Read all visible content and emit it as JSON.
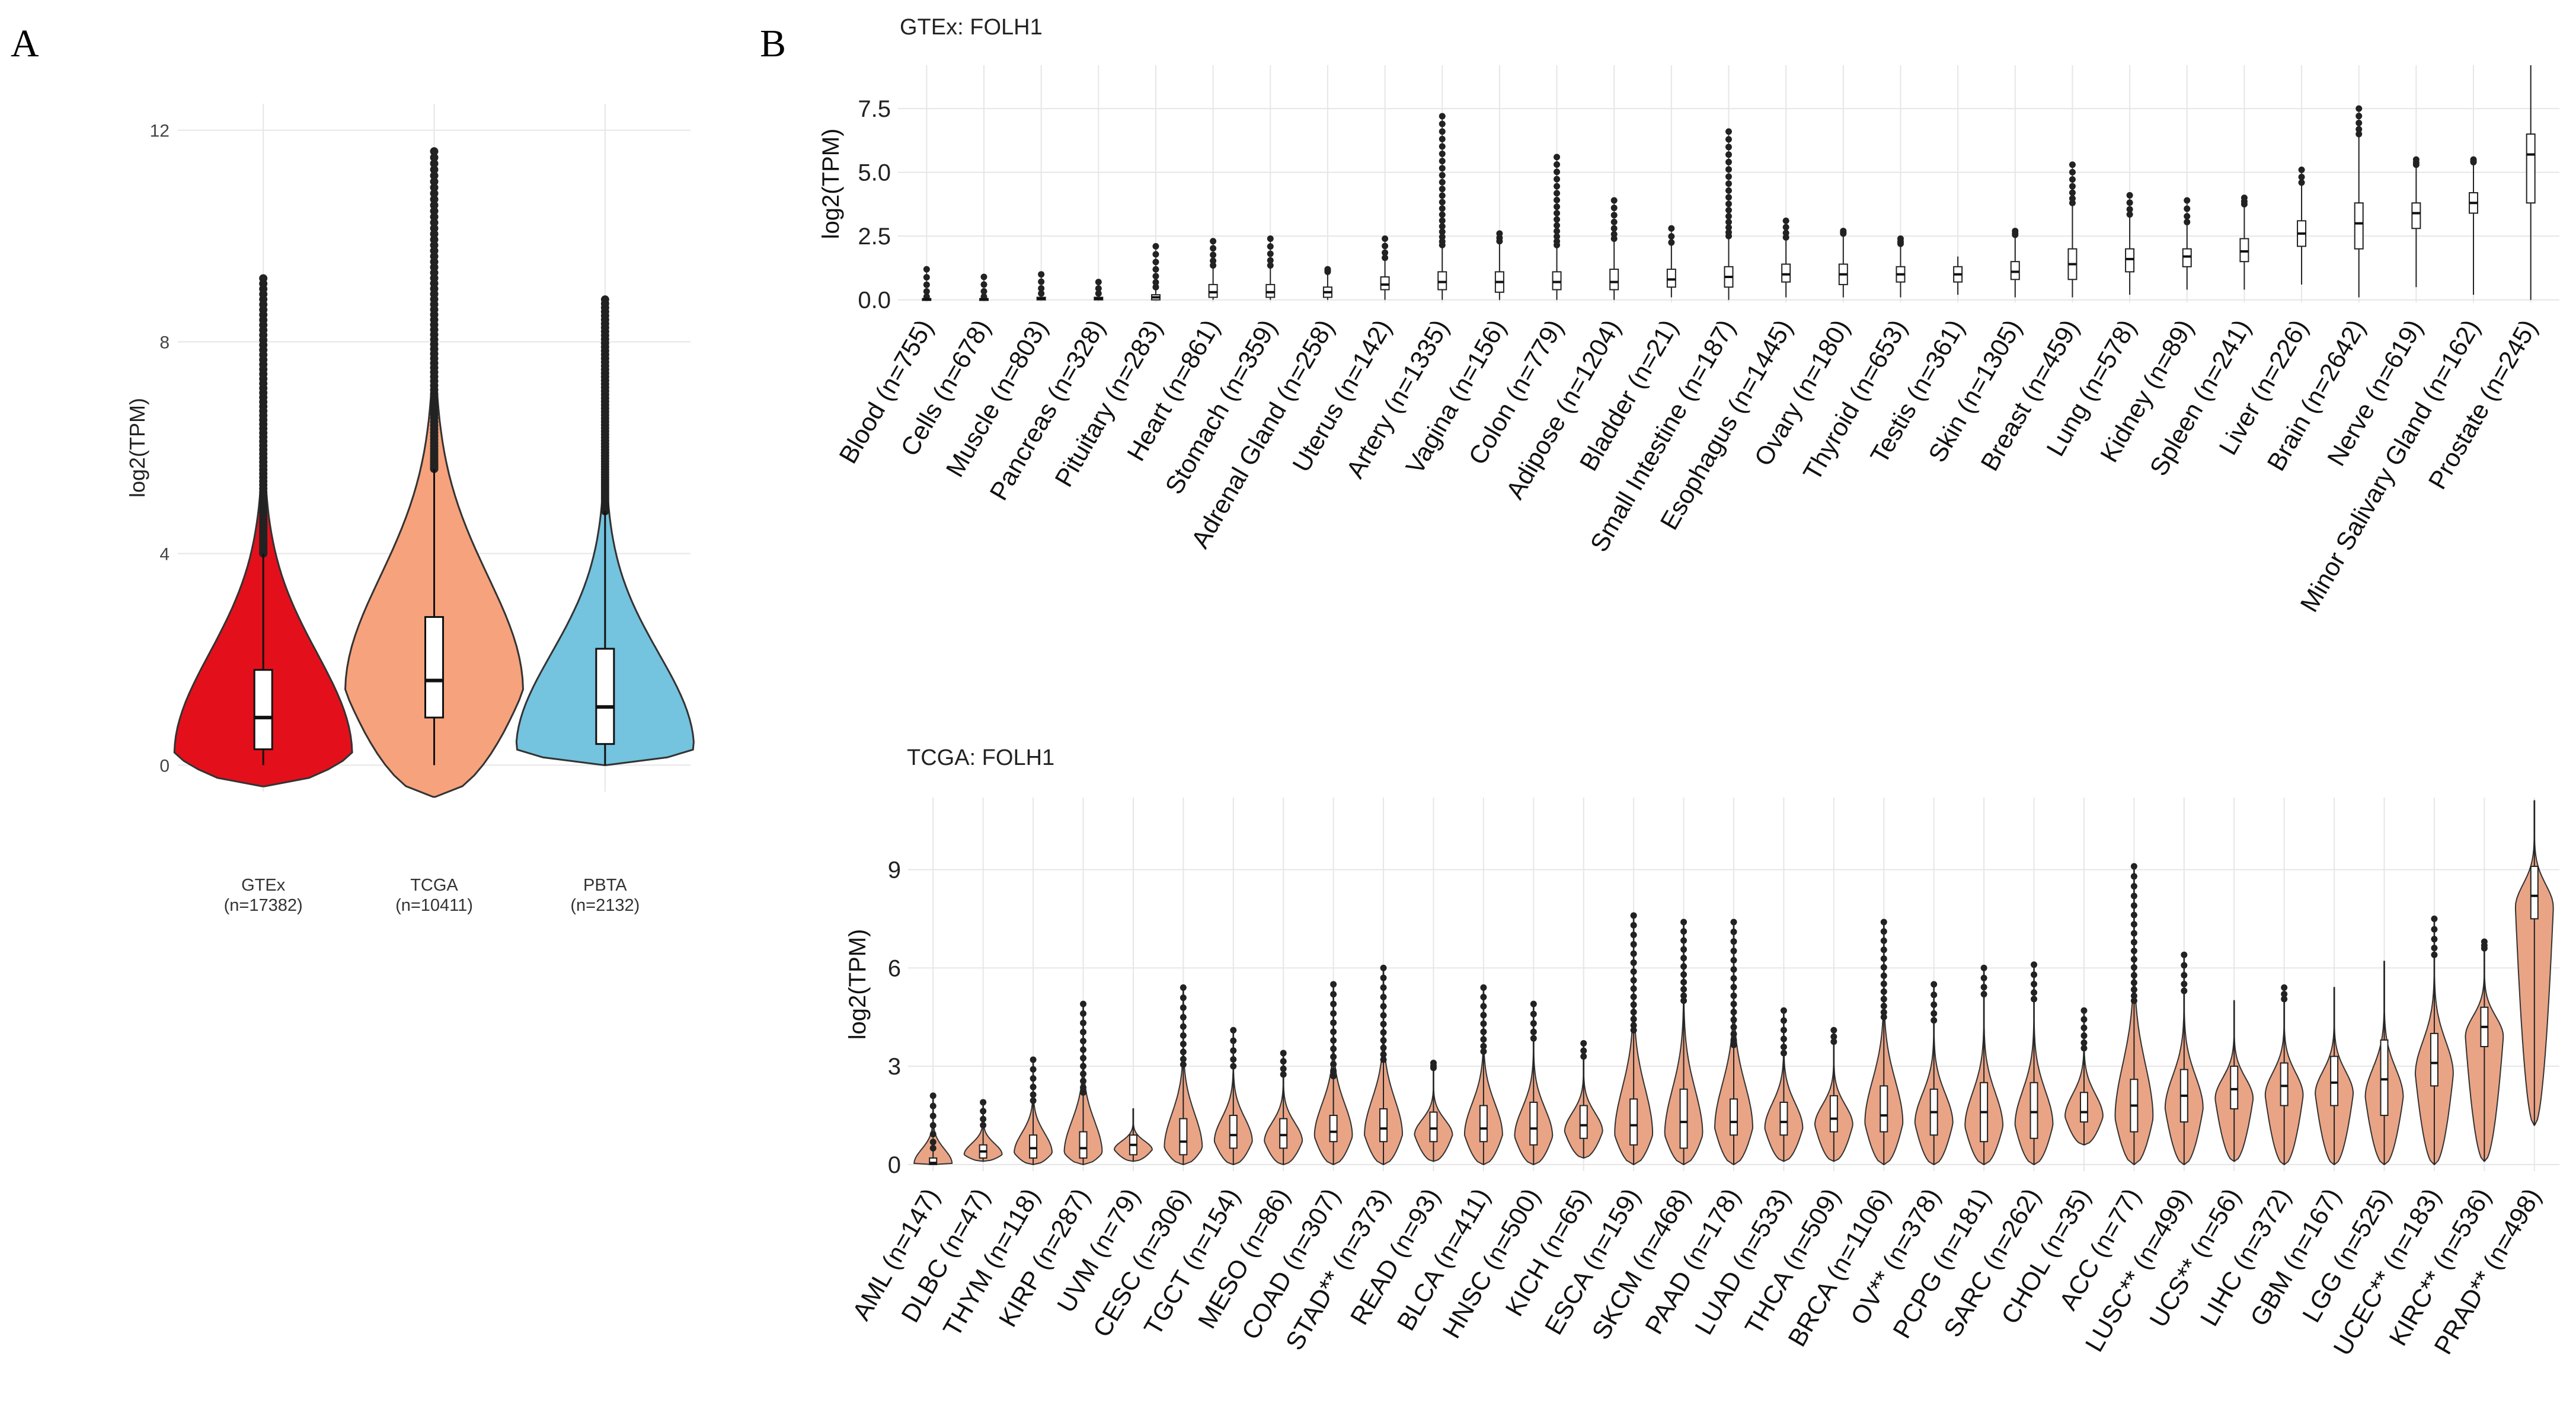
{
  "panels": {
    "A": {
      "letter": "A"
    },
    "B": {
      "letter": "B"
    }
  },
  "colors": {
    "GTEx": "#e3101c",
    "TCGA": "#f6a27c",
    "PBTA": "#74c3df",
    "grid": "#e6e6e6",
    "outlier": "#222222",
    "tcga_violin": "#e9a486"
  },
  "chart_data": [
    {
      "id": "panel-a",
      "type": "violin",
      "ylabel": "log2(TPM)",
      "ylim": [
        -0.5,
        12.5
      ],
      "yticks": [
        0,
        4,
        8,
        12
      ],
      "grid": true,
      "groups": [
        {
          "name": "GTEx",
          "n_label": "(n=17382)",
          "median": 0.9,
          "q1": 0.3,
          "q3": 1.8,
          "whisker_low": 0.0,
          "whisker_high": 4.0,
          "max": 9.2,
          "min": -0.4,
          "density_peak": 0.2
        },
        {
          "name": "TCGA",
          "n_label": "(n=10411)",
          "median": 1.6,
          "q1": 0.9,
          "q3": 2.8,
          "whisker_low": 0.0,
          "whisker_high": 5.6,
          "max": 11.6,
          "min": -0.6,
          "density_peak": 1.4
        },
        {
          "name": "PBTA",
          "n_label": "(n=2132)",
          "median": 1.1,
          "q1": 0.4,
          "q3": 2.2,
          "whisker_low": 0.0,
          "whisker_high": 4.8,
          "max": 8.8,
          "min": 0.0,
          "density_peak": 0.3
        }
      ]
    },
    {
      "id": "panel-b-gtex",
      "type": "box",
      "title": "GTEx: FOLH1",
      "ylabel": "log2(TPM)",
      "ylim": [
        -0.1,
        9.2
      ],
      "yticks": [
        0.0,
        2.5,
        5.0,
        7.5
      ],
      "ytick_labels": [
        "0.0",
        "2.5",
        "5.0",
        "7.5"
      ],
      "grid": true,
      "categories": [
        "Blood (n=755)",
        "Cells (n=678)",
        "Muscle (n=803)",
        "Pancreas (n=328)",
        "Pituitary (n=283)",
        "Heart (n=861)",
        "Stomach (n=359)",
        "Adrenal Gland (n=258)",
        "Uterus (n=142)",
        "Artery (n=1335)",
        "Vagina (n=156)",
        "Colon (n=779)",
        "Adipose (n=1204)",
        "Bladder (n=21)",
        "Small Intestine (n=187)",
        "Esophagus (n=1445)",
        "Ovary (n=180)",
        "Thyroid (n=653)",
        "Testis (n=361)",
        "Skin (n=1305)",
        "Breast (n=459)",
        "Lung (n=578)",
        "Kidney (n=89)",
        "Spleen (n=241)",
        "Liver (n=226)",
        "Brain (n=2642)",
        "Nerve (n=619)",
        "Minor Salivary Gland (n=162)",
        "Prostate (n=245)"
      ],
      "medians": [
        0.02,
        0.02,
        0.05,
        0.05,
        0.1,
        0.3,
        0.3,
        0.3,
        0.6,
        0.7,
        0.7,
        0.7,
        0.7,
        0.8,
        0.9,
        1.0,
        1.0,
        1.0,
        1.0,
        1.1,
        1.4,
        1.6,
        1.7,
        1.9,
        2.6,
        3.0,
        3.4,
        3.8,
        5.7
      ],
      "q1": [
        0.0,
        0.0,
        0.0,
        0.0,
        0.0,
        0.1,
        0.1,
        0.1,
        0.4,
        0.4,
        0.3,
        0.4,
        0.4,
        0.5,
        0.5,
        0.7,
        0.6,
        0.7,
        0.7,
        0.8,
        0.8,
        1.1,
        1.3,
        1.5,
        2.1,
        2.0,
        2.8,
        3.4,
        3.8
      ],
      "q3": [
        0.05,
        0.05,
        0.1,
        0.1,
        0.2,
        0.6,
        0.6,
        0.5,
        0.9,
        1.1,
        1.1,
        1.1,
        1.2,
        1.2,
        1.3,
        1.4,
        1.4,
        1.3,
        1.3,
        1.5,
        2.0,
        2.0,
        2.0,
        2.4,
        3.1,
        3.8,
        3.8,
        4.2,
        6.5
      ],
      "maxes": [
        1.2,
        0.9,
        1.0,
        0.7,
        2.1,
        2.3,
        2.4,
        1.2,
        2.4,
        7.2,
        2.6,
        5.6,
        3.9,
        2.8,
        6.6,
        3.1,
        2.7,
        2.4,
        1.7,
        2.7,
        5.3,
        4.1,
        3.9,
        4.0,
        5.1,
        7.5,
        5.5,
        5.5,
        9.2
      ],
      "mins": [
        0.0,
        0.0,
        0.0,
        0.0,
        0.0,
        0.0,
        0.0,
        0.0,
        0.0,
        0.0,
        0.0,
        0.0,
        0.0,
        0.1,
        0.0,
        0.1,
        0.1,
        0.1,
        0.2,
        0.1,
        0.1,
        0.2,
        0.4,
        0.4,
        0.6,
        0.1,
        0.5,
        0.2,
        0.0
      ]
    },
    {
      "id": "panel-b-tcga",
      "type": "violin",
      "title": "TCGA: FOLH1",
      "ylabel": "log2(TPM)",
      "ylim": [
        -0.2,
        11.2
      ],
      "yticks": [
        0,
        3,
        6,
        9
      ],
      "grid": true,
      "categories": [
        "AML (n=147)",
        "DLBC (n=47)",
        "THYM (n=118)",
        "KIRP (n=287)",
        "UVM (n=79)",
        "CESC (n=306)",
        "TGCT (n=154)",
        "MESO (n=86)",
        "COAD (n=307)",
        "STAD** (n=373)",
        "READ (n=93)",
        "BLCA (n=411)",
        "HNSC (n=500)",
        "KICH (n=65)",
        "ESCA (n=159)",
        "SKCM (n=468)",
        "PAAD (n=178)",
        "LUAD (n=533)",
        "THCA (n=509)",
        "BRCA (n=1106)",
        "OV** (n=378)",
        "PCPG (n=181)",
        "SARC (n=262)",
        "CHOL (n=35)",
        "ACC (n=77)",
        "LUSC** (n=499)",
        "UCS** (n=56)",
        "LIHC (n=372)",
        "GBM (n=167)",
        "LGG (n=525)",
        "UCEC** (n=183)",
        "KIRC** (n=536)",
        "PRAD** (n=498)"
      ],
      "medians": [
        0.05,
        0.4,
        0.5,
        0.5,
        0.6,
        0.7,
        0.9,
        0.9,
        1.0,
        1.1,
        1.1,
        1.1,
        1.1,
        1.2,
        1.2,
        1.3,
        1.3,
        1.3,
        1.4,
        1.5,
        1.6,
        1.6,
        1.6,
        1.6,
        1.8,
        2.1,
        2.3,
        2.4,
        2.5,
        2.6,
        3.1,
        4.2,
        8.2
      ],
      "q1": [
        0.0,
        0.2,
        0.2,
        0.2,
        0.3,
        0.3,
        0.5,
        0.5,
        0.7,
        0.7,
        0.7,
        0.7,
        0.6,
        0.8,
        0.6,
        0.5,
        0.9,
        0.9,
        1.0,
        1.0,
        0.9,
        0.7,
        0.8,
        1.3,
        1.0,
        1.3,
        1.7,
        1.8,
        1.8,
        1.5,
        2.4,
        3.6,
        7.5
      ],
      "q3": [
        0.2,
        0.6,
        0.9,
        1.0,
        0.9,
        1.4,
        1.5,
        1.4,
        1.5,
        1.7,
        1.6,
        1.8,
        1.9,
        1.8,
        2.0,
        2.3,
        2.0,
        1.9,
        2.1,
        2.4,
        2.3,
        2.5,
        2.5,
        2.2,
        2.6,
        2.9,
        3.0,
        3.1,
        3.3,
        3.8,
        4.0,
        4.8,
        9.1
      ],
      "maxes": [
        2.1,
        1.9,
        3.2,
        4.9,
        1.7,
        5.4,
        4.1,
        3.4,
        5.5,
        6.0,
        3.1,
        5.4,
        4.9,
        3.7,
        7.6,
        7.4,
        7.4,
        4.7,
        4.1,
        7.4,
        5.5,
        6.0,
        6.1,
        4.7,
        9.1,
        6.4,
        5.0,
        5.4,
        5.4,
        6.2,
        7.5,
        6.8,
        11.1
      ],
      "mins": [
        0.0,
        0.1,
        0.0,
        0.0,
        0.1,
        0.0,
        0.0,
        0.0,
        0.0,
        0.0,
        0.1,
        0.0,
        0.0,
        0.2,
        0.0,
        0.0,
        0.0,
        0.1,
        0.1,
        0.0,
        0.0,
        0.0,
        0.0,
        0.6,
        0.0,
        0.0,
        0.1,
        0.0,
        0.0,
        0.0,
        0.0,
        0.1,
        1.2
      ]
    }
  ]
}
